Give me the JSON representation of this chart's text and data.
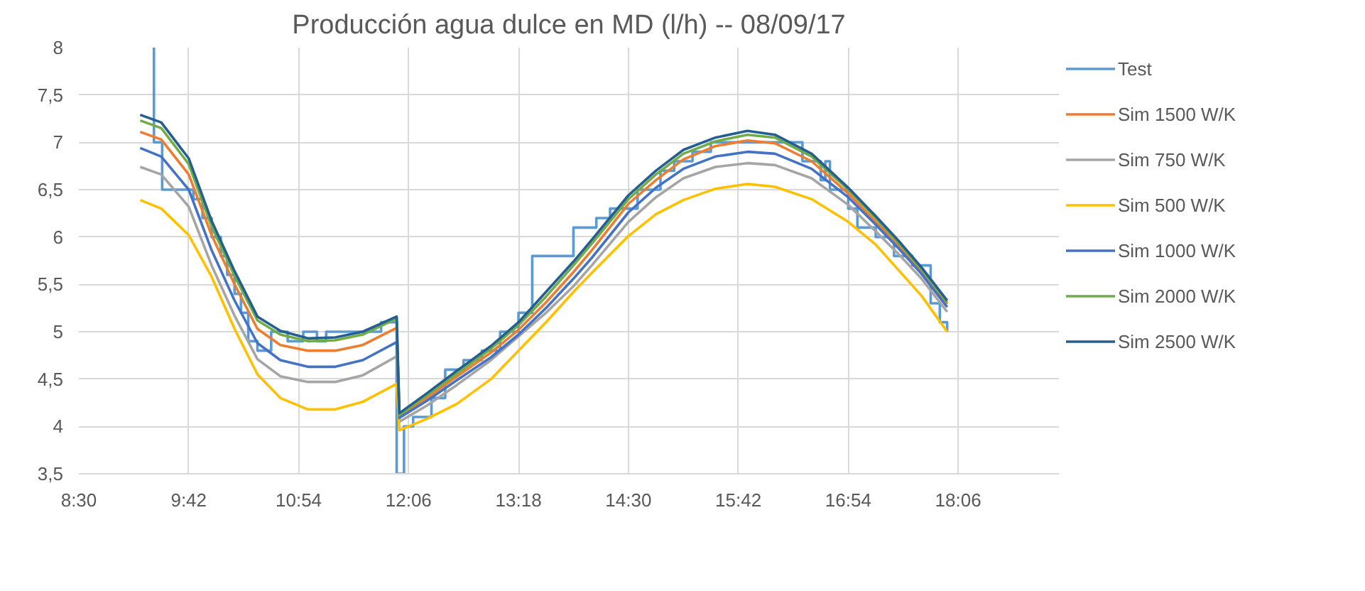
{
  "chart_data": {
    "type": "line",
    "title": "Producción agua dulce en MD (l/h) -- 08/09/17",
    "x": [
      9.17,
      9.4,
      9.7,
      9.95,
      10.2,
      10.45,
      10.7,
      11.0,
      11.3,
      11.6,
      11.97,
      12.0,
      12.3,
      12.63,
      13.0,
      13.3,
      13.6,
      13.9,
      14.1,
      14.5,
      14.8,
      15.1,
      15.45,
      15.8,
      16.1,
      16.5,
      16.9,
      17.2,
      17.45,
      17.7,
      17.98
    ],
    "xlim": [
      8.5,
      19.2
    ],
    "xticks": [
      {
        "value": 8.5,
        "label": "8:30"
      },
      {
        "value": 9.7,
        "label": "9:42"
      },
      {
        "value": 10.9,
        "label": "10:54"
      },
      {
        "value": 12.1,
        "label": "12:06"
      },
      {
        "value": 13.3,
        "label": "13:18"
      },
      {
        "value": 14.5,
        "label": "14:30"
      },
      {
        "value": 15.7,
        "label": "15:42"
      },
      {
        "value": 16.9,
        "label": "16:54"
      },
      {
        "value": 18.1,
        "label": "18:06"
      }
    ],
    "ylim": [
      3.5,
      8
    ],
    "yticks": [
      {
        "value": 3.5,
        "label": "3,5"
      },
      4,
      {
        "value": 4.5,
        "label": "4,5"
      },
      5,
      {
        "value": 5.5,
        "label": "5,5"
      },
      6,
      {
        "value": 6.5,
        "label": "6,5"
      },
      7,
      {
        "value": 7.5,
        "label": "7,5"
      },
      8
    ],
    "grid": true,
    "legend": "right",
    "line_style": "solid",
    "series": [
      {
        "name": "Test",
        "type": "step",
        "color": "#5b9bd5",
        "x": [
          9.31,
          9.32,
          9.41,
          9.75,
          9.85,
          9.95,
          10.05,
          10.12,
          10.2,
          10.27,
          10.35,
          10.45,
          10.6,
          10.78,
          10.95,
          11.1,
          11.2,
          11.4,
          11.6,
          11.8,
          11.97,
          12.05,
          12.15,
          12.35,
          12.5,
          12.7,
          12.9,
          13.1,
          13.3,
          13.45,
          13.7,
          13.9,
          14.15,
          14.3,
          14.6,
          14.85,
          15.0,
          15.2,
          15.4,
          15.6,
          15.9,
          16.2,
          16.4,
          16.55,
          16.6,
          16.65,
          16.7,
          16.9,
          17.0,
          17.2,
          17.4,
          17.6,
          17.8,
          17.9,
          17.98
        ],
        "values": [
          8.0,
          7.0,
          6.5,
          6.4,
          6.2,
          6.0,
          5.8,
          5.6,
          5.4,
          5.2,
          4.9,
          4.8,
          5.0,
          4.9,
          5.0,
          4.9,
          5.0,
          5.0,
          5.0,
          5.1,
          3.5,
          4.0,
          4.1,
          4.3,
          4.6,
          4.7,
          4.8,
          5.0,
          5.2,
          5.8,
          5.8,
          6.1,
          6.2,
          6.3,
          6.5,
          6.7,
          6.8,
          6.9,
          7.0,
          7.0,
          7.0,
          7.0,
          6.8,
          6.8,
          6.6,
          6.8,
          6.5,
          6.3,
          6.1,
          6.0,
          5.8,
          5.7,
          5.3,
          5.1,
          5.0
        ]
      },
      {
        "name": "Sim 1500 W/K",
        "color": "#ed7d31",
        "values": [
          7.11,
          7.03,
          6.66,
          6.02,
          5.5,
          5.03,
          4.86,
          4.8,
          4.8,
          4.86,
          5.04,
          4.11,
          4.3,
          4.53,
          4.78,
          5.02,
          5.31,
          5.63,
          5.86,
          6.35,
          6.6,
          6.82,
          6.96,
          7.02,
          6.99,
          6.8,
          6.46,
          6.16,
          5.91,
          5.63,
          5.29
        ]
      },
      {
        "name": "Sim 750 W/K",
        "color": "#a5a5a5",
        "values": [
          6.74,
          6.66,
          6.32,
          5.7,
          5.17,
          4.71,
          4.53,
          4.47,
          4.47,
          4.54,
          4.74,
          4.05,
          4.22,
          4.44,
          4.7,
          4.95,
          5.2,
          5.48,
          5.7,
          6.16,
          6.42,
          6.62,
          6.74,
          6.78,
          6.76,
          6.62,
          6.34,
          6.06,
          5.82,
          5.56,
          5.21
        ]
      },
      {
        "name": "Sim 500 W/K",
        "color": "#ffc000",
        "values": [
          6.39,
          6.3,
          6.02,
          5.58,
          5.03,
          4.55,
          4.3,
          4.18,
          4.18,
          4.26,
          4.45,
          3.96,
          4.08,
          4.24,
          4.5,
          4.8,
          5.1,
          5.42,
          5.62,
          6.01,
          6.24,
          6.39,
          6.51,
          6.56,
          6.53,
          6.4,
          6.16,
          5.92,
          5.65,
          5.38,
          5.0
        ]
      },
      {
        "name": "Sim 1000 W/K",
        "color": "#4472c4",
        "values": [
          6.94,
          6.85,
          6.5,
          5.86,
          5.33,
          4.88,
          4.7,
          4.63,
          4.63,
          4.7,
          4.89,
          4.09,
          4.27,
          4.49,
          4.73,
          4.97,
          5.25,
          5.56,
          5.78,
          6.26,
          6.52,
          6.72,
          6.85,
          6.9,
          6.88,
          6.72,
          6.42,
          6.13,
          5.88,
          5.61,
          5.26
        ]
      },
      {
        "name": "Sim 2000 W/K",
        "color": "#70ad47",
        "values": [
          7.23,
          7.15,
          6.77,
          6.11,
          5.59,
          5.12,
          4.97,
          4.9,
          4.91,
          4.97,
          5.14,
          4.12,
          4.33,
          4.56,
          4.82,
          5.07,
          5.37,
          5.7,
          5.93,
          6.4,
          6.66,
          6.88,
          7.01,
          7.08,
          7.05,
          6.85,
          6.5,
          6.2,
          5.94,
          5.66,
          5.31
        ]
      },
      {
        "name": "Sim 2500 W/K",
        "color": "#255e91",
        "values": [
          7.29,
          7.21,
          6.83,
          6.17,
          5.64,
          5.16,
          5.01,
          4.93,
          4.94,
          5.0,
          5.16,
          4.14,
          4.35,
          4.59,
          4.85,
          5.1,
          5.42,
          5.74,
          5.97,
          6.44,
          6.7,
          6.92,
          7.05,
          7.12,
          7.08,
          6.88,
          6.52,
          6.22,
          5.96,
          5.68,
          5.33
        ]
      }
    ]
  }
}
